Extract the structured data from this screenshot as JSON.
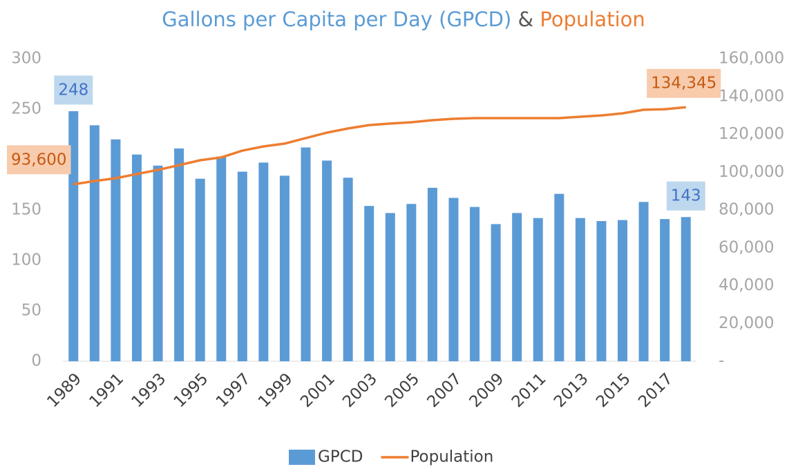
{
  "chart_data": {
    "type": "bar_line",
    "title_parts": [
      "Gallons per Capita per Day (GPCD)",
      "&",
      "Population"
    ],
    "categories": [
      "1989",
      null,
      "1991",
      null,
      "1993",
      null,
      "1995",
      null,
      "1997",
      null,
      "1999",
      null,
      "2001",
      null,
      "2003",
      null,
      "2005",
      null,
      "2007",
      null,
      "2009",
      null,
      "2011",
      null,
      "2013",
      null,
      "2015",
      null,
      "2017",
      null
    ],
    "series": [
      {
        "name": "GPCD",
        "type": "bar",
        "color": "#5b9bd5",
        "label_fill": "#bdd7ee",
        "label_color": "#4472c4",
        "values": [
          248,
          234,
          220,
          205,
          194,
          211,
          181,
          203,
          188,
          197,
          184,
          212,
          199,
          182,
          154,
          147,
          156,
          172,
          162,
          153,
          136,
          147,
          142,
          166,
          142,
          139,
          140,
          158,
          141,
          143
        ],
        "value_labels": [
          "248",
          null,
          null,
          null,
          null,
          null,
          null,
          null,
          null,
          null,
          null,
          null,
          null,
          null,
          null,
          null,
          null,
          null,
          null,
          null,
          null,
          null,
          null,
          null,
          null,
          null,
          null,
          null,
          null,
          "143"
        ]
      },
      {
        "name": "Population",
        "type": "line",
        "axis": "y2",
        "color": "#ed7d31",
        "label_fill": "#f8cbad",
        "label_color": "#c55a11",
        "values": [
          93600,
          95300,
          96800,
          99000,
          101200,
          103700,
          106300,
          107800,
          111400,
          113600,
          115100,
          118000,
          120900,
          123100,
          124900,
          125700,
          126400,
          127500,
          128200,
          128600,
          128600,
          128600,
          128600,
          128600,
          129300,
          130000,
          131100,
          133000,
          133300,
          134345
        ],
        "value_labels": [
          "93,600",
          null,
          null,
          null,
          null,
          null,
          null,
          null,
          null,
          null,
          null,
          null,
          null,
          null,
          null,
          null,
          null,
          null,
          null,
          null,
          null,
          null,
          null,
          null,
          null,
          null,
          null,
          null,
          null,
          "134,345"
        ]
      }
    ],
    "title_colors": [
      "#5b9bd5",
      "#595959",
      "#ed7d31"
    ],
    "ylim": [
      0,
      300
    ],
    "yticks": [
      0,
      50,
      100,
      150,
      200,
      250,
      300
    ],
    "y2lim": [
      0,
      160000
    ],
    "y2ticks": [
      {
        "value": 0,
        "label": "-"
      },
      {
        "value": 20000,
        "label": "20,000"
      },
      {
        "value": 40000,
        "label": "40,000"
      },
      {
        "value": 60000,
        "label": "60,000"
      },
      {
        "value": 80000,
        "label": "80,000"
      },
      {
        "value": 100000,
        "label": "100,000"
      },
      {
        "value": 120000,
        "label": "120,000"
      },
      {
        "value": 140000,
        "label": "140,000"
      },
      {
        "value": 160000,
        "label": "160,000"
      }
    ],
    "legend": "bottom"
  }
}
